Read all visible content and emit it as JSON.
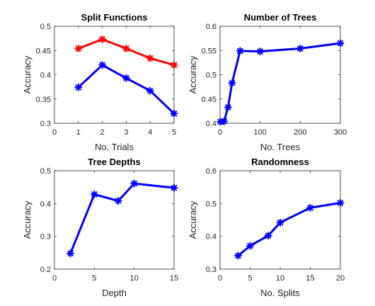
{
  "chart_data": [
    {
      "type": "line",
      "title": "Split Functions",
      "xlabel": "No. Trials",
      "ylabel": "Accuracy",
      "xlim": [
        0,
        5
      ],
      "ylim": [
        0.3,
        0.5
      ],
      "xticks": [
        0,
        1,
        2,
        3,
        4,
        5
      ],
      "yticks": [
        0.3,
        0.35,
        0.4,
        0.45,
        0.5
      ],
      "xtick_labels": [
        "0",
        "1",
        "2",
        "3",
        "4",
        "5"
      ],
      "ytick_labels": [
        "0.3",
        "0.35",
        "0.4",
        "0.45",
        "0.5"
      ],
      "grid": false,
      "series": [
        {
          "color": "#ff0000",
          "marker": "star",
          "x": [
            1,
            2,
            3,
            4,
            5
          ],
          "y": [
            0.454,
            0.473,
            0.454,
            0.434,
            0.42
          ]
        },
        {
          "color": "#0000ff",
          "marker": "star",
          "x": [
            1,
            2,
            3,
            4,
            5
          ],
          "y": [
            0.374,
            0.42,
            0.393,
            0.367,
            0.32
          ]
        }
      ]
    },
    {
      "type": "line",
      "title": "Number of Trees",
      "xlabel": "No. Trees",
      "ylabel": "Accuracy",
      "xlim": [
        0,
        300
      ],
      "ylim": [
        0.4,
        0.6
      ],
      "xticks": [
        0,
        100,
        200,
        300
      ],
      "yticks": [
        0.4,
        0.45,
        0.5,
        0.55,
        0.6
      ],
      "xtick_labels": [
        "0",
        "100",
        "200",
        "300"
      ],
      "ytick_labels": [
        "0.4",
        "0.45",
        "0.5",
        "0.55",
        "0.6"
      ],
      "grid": false,
      "series": [
        {
          "color": "#0000ff",
          "marker": "star",
          "x": [
            1,
            10,
            20,
            30,
            50,
            100,
            200,
            300
          ],
          "y": [
            0.403,
            0.404,
            0.433,
            0.483,
            0.549,
            0.548,
            0.554,
            0.565
          ]
        }
      ]
    },
    {
      "type": "line",
      "title": "Tree Depths",
      "xlabel": "Depth",
      "ylabel": "Accuracy",
      "xlim": [
        0,
        15
      ],
      "ylim": [
        0.2,
        0.5
      ],
      "xticks": [
        0,
        5,
        10,
        15
      ],
      "yticks": [
        0.2,
        0.3,
        0.4,
        0.5
      ],
      "xtick_labels": [
        "0",
        "5",
        "10",
        "15"
      ],
      "ytick_labels": [
        "0.2",
        "0.3",
        "0.4",
        "0.5"
      ],
      "grid": false,
      "series": [
        {
          "color": "#0000ff",
          "marker": "star",
          "x": [
            2,
            5,
            8,
            10,
            15
          ],
          "y": [
            0.248,
            0.428,
            0.408,
            0.461,
            0.448
          ]
        }
      ]
    },
    {
      "type": "line",
      "title": "Randomness",
      "xlabel": "No. Splits",
      "ylabel": "Accuracy",
      "xlim": [
        0,
        20
      ],
      "ylim": [
        0.3,
        0.6
      ],
      "xticks": [
        0,
        5,
        10,
        15,
        20
      ],
      "yticks": [
        0.3,
        0.4,
        0.5,
        0.6
      ],
      "xtick_labels": [
        "0",
        "5",
        "10",
        "15",
        "20"
      ],
      "ytick_labels": [
        "0.3",
        "0.4",
        "0.5",
        "0.6"
      ],
      "grid": false,
      "series": [
        {
          "color": "#0000ff",
          "marker": "star",
          "x": [
            3,
            5,
            8,
            10,
            15,
            20
          ],
          "y": [
            0.341,
            0.371,
            0.402,
            0.442,
            0.487,
            0.502
          ]
        }
      ]
    }
  ]
}
